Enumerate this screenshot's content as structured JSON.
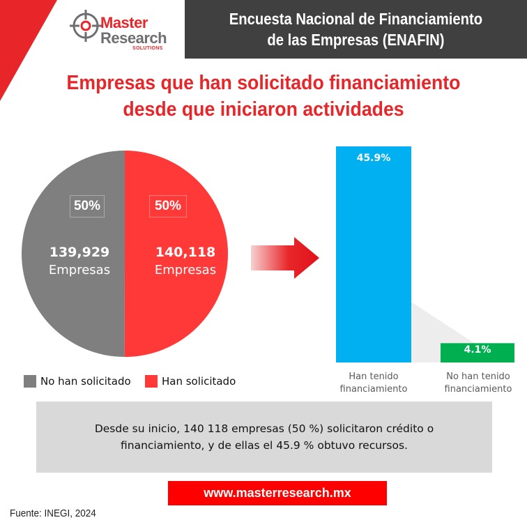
{
  "brand": {
    "line1": "Master",
    "line2": "Research",
    "line3": "SOLUTIONS",
    "red": "#e8262a",
    "gray": "#6d6e71"
  },
  "header": {
    "line1": "Encuesta Nacional de Financiamiento",
    "line2": "de las Empresas (ENAFIN)",
    "background": "#404040"
  },
  "chart_data": [
    {
      "type": "pie",
      "title": "Empresas que han solicitado financiamiento desde que iniciaron actividades",
      "title_lines": [
        "Empresas que han solicitado financiamiento",
        "desde que iniciaron actividades"
      ],
      "slices": [
        {
          "name": "No han solicitado",
          "percent_label": "50%",
          "count_label": "139,929",
          "unit_label": "Empresas",
          "value": 139929,
          "color": "#7f7f7f"
        },
        {
          "name": "Han solicitado",
          "percent_label": "50%",
          "count_label": "140,118",
          "unit_label": "Empresas",
          "value": 140118,
          "color": "#ff3838"
        }
      ],
      "legend": "bottom"
    },
    {
      "type": "bar",
      "categories": [
        "Han tenido financiamiento",
        "No han tenido financiamiento"
      ],
      "category_lines": [
        [
          "Han tenido",
          "financiamiento"
        ],
        [
          "No han tenido",
          "financiamiento"
        ]
      ],
      "values": [
        45.9,
        4.1
      ],
      "value_labels": [
        "45.9%",
        "4.1%"
      ],
      "colors": [
        "#00b0f0",
        "#00b050"
      ],
      "ylim": [
        0,
        45.9
      ]
    }
  ],
  "summary": {
    "text": "Desde su inicio, 140 118 empresas (50 %) solicitaron crédito o financiamiento, y de ellas el 45.9 % obtuvo recursos."
  },
  "url": "www.masterresearch.mx",
  "source": "Fuente: INEGI, 2024"
}
